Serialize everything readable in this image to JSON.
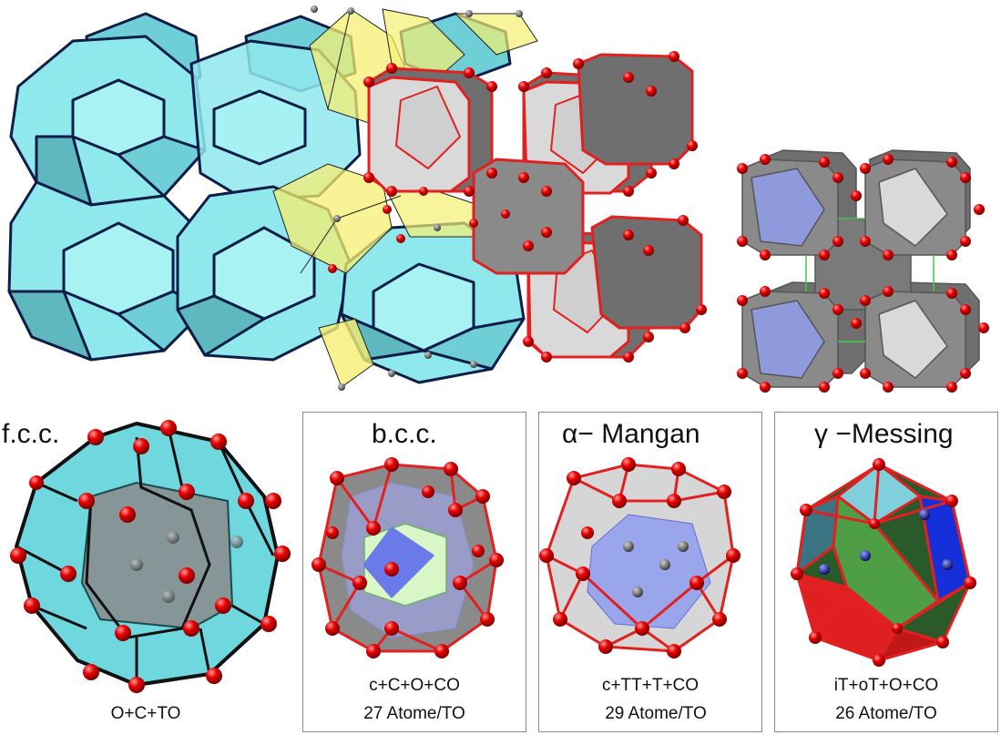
{
  "colors": {
    "cyan_face": "#8fe8ec",
    "cyan_dark": "#5fb8bf",
    "edge_navy": "#0d1d4a",
    "grey_face": "#d9d9d9",
    "grey_dark": "#6f6f6f",
    "red_edge": "#e22020",
    "atom_red": "#e60000",
    "yellow": "#f5ef72",
    "blue_inner": "#7e8ef0",
    "green_inner": "#4e9e46",
    "deep_blue": "#1530d8"
  },
  "panels": {
    "fcc": {
      "title": "f.c.c.",
      "caption1": "O+C+TO"
    },
    "bcc": {
      "title": "b.c.c.",
      "caption1": "c+C+O+CO",
      "caption2": "27 Atome/TO"
    },
    "mangan": {
      "title": "α− Mangan",
      "caption1": "c+TT+T+CO",
      "caption2": "29 Atome/TO"
    },
    "messing": {
      "title": "γ −Messing",
      "caption1": "iT+oT+O+CO",
      "caption2": "26 Atome/TO"
    }
  }
}
